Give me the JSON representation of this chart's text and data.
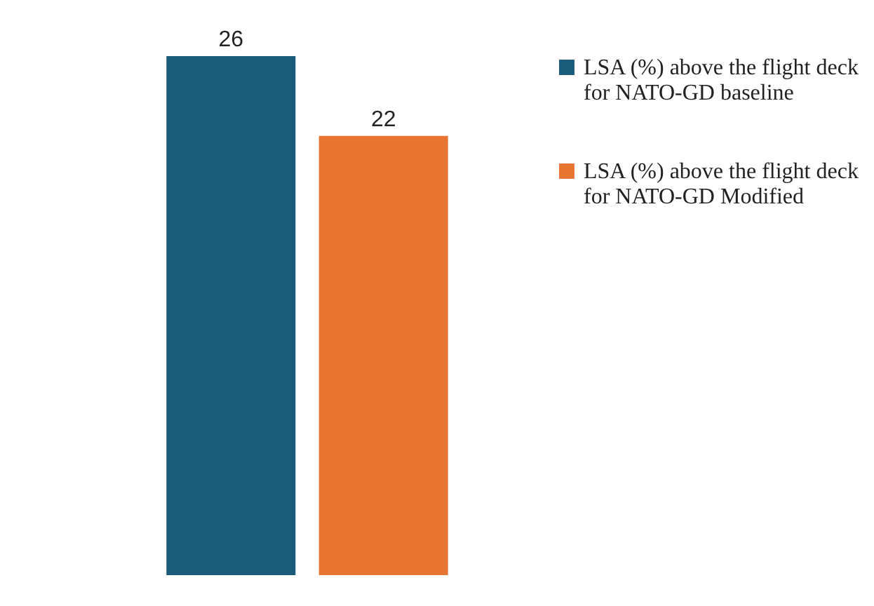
{
  "chart_data": {
    "type": "bar",
    "categories": [
      null
    ],
    "series": [
      {
        "name": "LSA (%) above the flight deck for NATO-GD baseline",
        "color": "#1a5b7a",
        "values": [
          26
        ]
      },
      {
        "name": "LSA (%) above the flight deck for NATO-GD Modified",
        "color": "#e87432",
        "values": [
          22
        ]
      }
    ],
    "data_labels": true,
    "legend": "right",
    "grid": false,
    "tick_labels": false
  }
}
